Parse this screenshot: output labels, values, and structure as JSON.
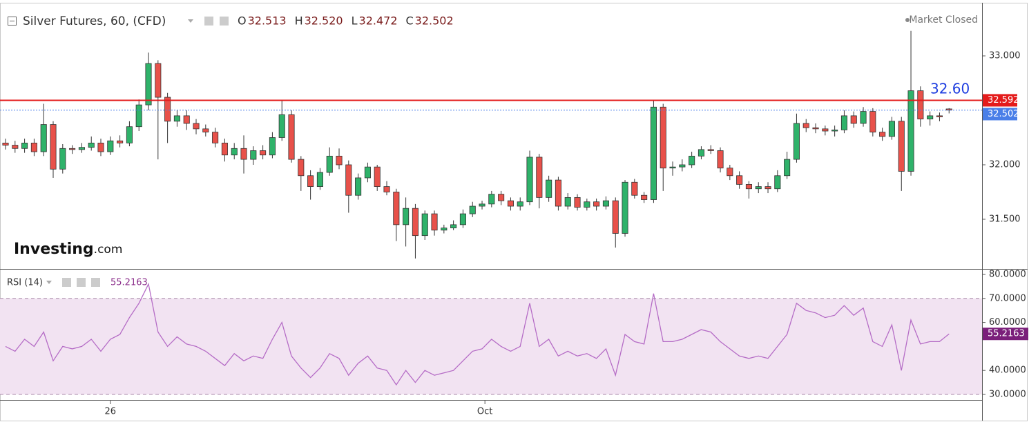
{
  "chart_data": [
    {
      "type": "candlestick",
      "title": "Silver Futures, 60, (CFD)",
      "header_ohlc": [
        {
          "name": "O",
          "value": 32.513
        },
        {
          "name": "H",
          "value": 32.52,
          "label": "32.520"
        },
        {
          "name": "L",
          "value": 32.472
        },
        {
          "name": "C",
          "value": 32.502
        }
      ],
      "status": "Market Closed",
      "logo": "Investing",
      "logo_suffix": ".com",
      "annotation": {
        "text": "32.60",
        "color": "#1f3ee0"
      },
      "up_color": "#2fb26a",
      "down_color": "#e8514a",
      "price_lines": [
        {
          "value": 32.592,
          "color": "#e41b1b",
          "style": "solid"
        },
        {
          "value": 32.502,
          "color": "#4a7fe8",
          "style": "dotted"
        }
      ],
      "xlim": [
        -0.58,
        102.46
      ],
      "xticks": [
        {
          "value": 11,
          "label": "26"
        },
        {
          "value": 50.3,
          "label": "Oct"
        }
      ],
      "ylim": [
        31.044,
        33.513
      ],
      "yticks": [
        {
          "value": 31.5,
          "label": "31.500"
        },
        {
          "value": 32,
          "label": "32.000"
        },
        {
          "value": 33,
          "label": "33.000"
        }
      ],
      "values": [
        [
          32.2,
          32.24,
          32.14,
          32.18
        ],
        [
          32.18,
          32.22,
          32.11,
          32.15
        ],
        [
          32.15,
          32.24,
          32.11,
          32.2
        ],
        [
          32.2,
          32.24,
          32.08,
          32.12
        ],
        [
          32.12,
          32.56,
          32.08,
          32.37
        ],
        [
          32.37,
          32.4,
          31.88,
          31.96
        ],
        [
          31.96,
          32.19,
          31.92,
          32.15
        ],
        [
          32.15,
          32.18,
          32.1,
          32.14
        ],
        [
          32.14,
          32.2,
          32.11,
          32.16
        ],
        [
          32.16,
          32.26,
          32.13,
          32.2
        ],
        [
          32.2,
          32.24,
          32.08,
          32.12
        ],
        [
          32.12,
          32.26,
          32.09,
          32.22
        ],
        [
          32.22,
          32.27,
          32.16,
          32.2
        ],
        [
          32.2,
          32.4,
          32.17,
          32.35
        ],
        [
          32.35,
          32.6,
          32.31,
          32.55
        ],
        [
          32.55,
          33.03,
          32.5,
          32.93
        ],
        [
          32.93,
          32.96,
          32.05,
          32.62
        ],
        [
          32.62,
          32.66,
          32.2,
          32.4
        ],
        [
          32.4,
          32.5,
          32.35,
          32.45
        ],
        [
          32.45,
          32.5,
          32.32,
          32.38
        ],
        [
          32.38,
          32.42,
          32.28,
          32.33
        ],
        [
          32.33,
          32.37,
          32.26,
          32.3
        ],
        [
          32.3,
          32.34,
          32.16,
          32.2
        ],
        [
          32.2,
          32.24,
          32.03,
          32.09
        ],
        [
          32.09,
          32.2,
          32.05,
          32.15
        ],
        [
          32.15,
          32.27,
          31.92,
          32.05
        ],
        [
          32.05,
          32.17,
          32.0,
          32.13
        ],
        [
          32.13,
          32.18,
          32.05,
          32.09
        ],
        [
          32.09,
          32.3,
          32.06,
          32.25
        ],
        [
          32.25,
          32.59,
          32.22,
          32.46
        ],
        [
          32.46,
          32.5,
          32.02,
          32.05
        ],
        [
          32.05,
          32.08,
          31.76,
          31.9
        ],
        [
          31.9,
          31.95,
          31.68,
          31.8
        ],
        [
          31.8,
          31.97,
          31.77,
          31.93
        ],
        [
          31.93,
          32.16,
          31.9,
          32.08
        ],
        [
          32.08,
          32.15,
          31.96,
          32.0
        ],
        [
          32.0,
          32.04,
          31.56,
          31.72
        ],
        [
          31.72,
          31.92,
          31.68,
          31.88
        ],
        [
          31.88,
          32.02,
          31.84,
          31.98
        ],
        [
          31.98,
          32.0,
          31.76,
          31.8
        ],
        [
          31.8,
          31.85,
          31.72,
          31.75
        ],
        [
          31.75,
          31.78,
          31.3,
          31.45
        ],
        [
          31.45,
          31.7,
          31.25,
          31.6
        ],
        [
          31.6,
          31.64,
          31.14,
          31.35
        ],
        [
          31.35,
          31.58,
          31.31,
          31.55
        ],
        [
          31.55,
          31.58,
          31.35,
          31.4
        ],
        [
          31.4,
          31.45,
          31.37,
          31.42
        ],
        [
          31.42,
          31.49,
          31.4,
          31.45
        ],
        [
          31.45,
          31.59,
          31.42,
          31.55
        ],
        [
          31.55,
          31.66,
          31.52,
          31.62
        ],
        [
          31.62,
          31.67,
          31.59,
          31.64
        ],
        [
          31.64,
          31.76,
          31.61,
          31.73
        ],
        [
          31.73,
          31.76,
          31.63,
          31.67
        ],
        [
          31.67,
          31.7,
          31.58,
          31.62
        ],
        [
          31.62,
          31.7,
          31.58,
          31.66
        ],
        [
          31.66,
          32.13,
          31.63,
          32.07
        ],
        [
          32.07,
          32.1,
          31.6,
          31.7
        ],
        [
          31.7,
          31.9,
          31.66,
          31.86
        ],
        [
          31.86,
          31.89,
          31.58,
          31.62
        ],
        [
          31.62,
          31.74,
          31.59,
          31.7
        ],
        [
          31.7,
          31.73,
          31.58,
          31.61
        ],
        [
          31.61,
          31.69,
          31.58,
          31.66
        ],
        [
          31.66,
          31.69,
          31.58,
          31.62
        ],
        [
          31.62,
          31.71,
          31.59,
          31.67
        ],
        [
          31.67,
          31.7,
          31.24,
          31.37
        ],
        [
          31.37,
          31.86,
          31.34,
          31.84
        ],
        [
          31.84,
          31.87,
          31.69,
          31.72
        ],
        [
          31.72,
          31.75,
          31.65,
          31.68
        ],
        [
          31.68,
          32.59,
          31.65,
          32.53
        ],
        [
          32.53,
          32.56,
          31.76,
          31.97
        ],
        [
          31.97,
          32.03,
          31.9,
          31.98
        ],
        [
          31.98,
          32.05,
          31.94,
          32.0
        ],
        [
          32.0,
          32.12,
          31.97,
          32.08
        ],
        [
          32.08,
          32.17,
          32.05,
          32.14
        ],
        [
          32.14,
          32.18,
          32.1,
          32.13
        ],
        [
          32.13,
          32.16,
          31.93,
          31.97
        ],
        [
          31.97,
          32.0,
          31.86,
          31.9
        ],
        [
          31.9,
          31.94,
          31.78,
          31.82
        ],
        [
          31.82,
          31.85,
          31.69,
          31.78
        ],
        [
          31.78,
          31.84,
          31.74,
          31.8
        ],
        [
          31.8,
          31.84,
          31.74,
          31.78
        ],
        [
          31.78,
          31.95,
          31.75,
          31.9
        ],
        [
          31.9,
          32.12,
          31.87,
          32.05
        ],
        [
          32.05,
          32.47,
          32.02,
          32.38
        ],
        [
          32.38,
          32.42,
          32.3,
          32.34
        ],
        [
          32.34,
          32.38,
          32.29,
          32.33
        ],
        [
          32.33,
          32.36,
          32.27,
          32.31
        ],
        [
          32.31,
          32.36,
          32.26,
          32.32
        ],
        [
          32.32,
          32.5,
          32.29,
          32.45
        ],
        [
          32.45,
          32.49,
          32.34,
          32.38
        ],
        [
          32.38,
          32.53,
          32.35,
          32.49
        ],
        [
          32.49,
          32.52,
          32.26,
          32.3
        ],
        [
          32.3,
          32.34,
          32.22,
          32.26
        ],
        [
          32.26,
          32.44,
          32.23,
          32.4
        ],
        [
          32.4,
          32.44,
          31.76,
          31.94
        ],
        [
          31.94,
          33.23,
          31.9,
          32.68
        ],
        [
          32.68,
          32.72,
          32.35,
          32.42
        ],
        [
          32.42,
          32.49,
          32.36,
          32.45
        ],
        [
          32.45,
          32.48,
          32.4,
          32.44
        ],
        [
          32.513,
          32.52,
          32.472,
          32.502
        ]
      ]
    },
    {
      "type": "line",
      "title": "RSI (14)",
      "last": 55.2163,
      "color": "#b56cc6",
      "band_color": "#f2e3f2",
      "band": [
        30,
        70
      ],
      "ylim": [
        27.7,
        82.3
      ],
      "yticks": [
        {
          "value": 30,
          "label": "30.0000"
        },
        {
          "value": 40,
          "label": "40.0000"
        },
        {
          "value": 60,
          "label": "60.0000"
        },
        {
          "value": 70,
          "label": "70.0000"
        },
        {
          "value": 80,
          "label": "80.0000"
        }
      ],
      "values": [
        50,
        48,
        53,
        50,
        56,
        44,
        50,
        49,
        50,
        53,
        48,
        53,
        55,
        62,
        68,
        76,
        56,
        50,
        54,
        51,
        50,
        48,
        45,
        42,
        47,
        44,
        46,
        45,
        53,
        60,
        46,
        41,
        37,
        41,
        47,
        45,
        38,
        43,
        46,
        41,
        40,
        34,
        40,
        35,
        40,
        38,
        39,
        40,
        44,
        48,
        49,
        53,
        50,
        48,
        50,
        68,
        50,
        53,
        46,
        48,
        46,
        47,
        45,
        49,
        38,
        55,
        52,
        51,
        72,
        52,
        52,
        53,
        55,
        57,
        56,
        52,
        49,
        46,
        45,
        46,
        45,
        50,
        55,
        68,
        65,
        64,
        62,
        63,
        67,
        63,
        66,
        52,
        50,
        59,
        40,
        61,
        51,
        52,
        52,
        55.2163
      ]
    }
  ]
}
